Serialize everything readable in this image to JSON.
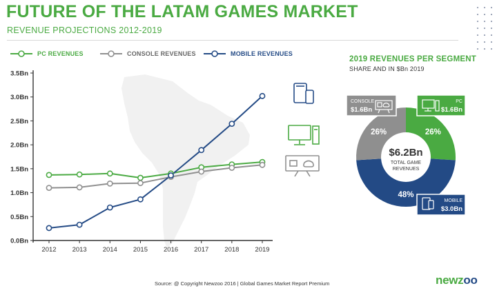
{
  "header": {
    "title": "FUTURE OF THE LATAM GAMES MARKET",
    "subtitle": "REVENUE PROJECTIONS 2012-2019"
  },
  "colors": {
    "pc": "#4aaa42",
    "console": "#8f8f8f",
    "mobile": "#234a85",
    "axis": "#333333",
    "grid": "#cfcfcf",
    "map": "#f1f1f1"
  },
  "icons": [
    "tablet-phone-icon",
    "desktop-pc-icon",
    "console-tv-icon"
  ],
  "chart_data": [
    {
      "type": "line",
      "x": [
        "2012",
        "2013",
        "2014",
        "2015",
        "2016",
        "2017",
        "2018",
        "2019"
      ],
      "series": [
        {
          "name": "PC REVENUES",
          "color": "#4aaa42",
          "values": [
            1.37,
            1.38,
            1.4,
            1.31,
            1.4,
            1.53,
            1.59,
            1.64
          ]
        },
        {
          "name": "CONSOLE REVENUES",
          "color": "#8f8f8f",
          "values": [
            1.1,
            1.11,
            1.19,
            1.2,
            1.33,
            1.44,
            1.52,
            1.58
          ]
        },
        {
          "name": "MOBILE REVENUES",
          "color": "#234a85",
          "values": [
            0.26,
            0.33,
            0.69,
            0.86,
            1.36,
            1.89,
            2.44,
            3.02
          ]
        }
      ],
      "y_ticks": [
        "0.0Bn",
        "0.5Bn",
        "1.0Bn",
        "1.5Bn",
        "2.0Bn",
        "2.5Bn",
        "3.0Bn",
        "3.5Bn"
      ],
      "ylim": [
        0,
        3.5
      ],
      "grid": false,
      "legend": "top-left"
    },
    {
      "type": "pie",
      "title": "2019 REVENUES PER SEGMENT",
      "subtitle": "SHARE AND IN $Bn 2019",
      "center_label": "$6.2Bn",
      "center_sublabel": [
        "TOTAL GAME",
        "REVENUES"
      ],
      "slices": [
        {
          "name": "PC",
          "value": 26,
          "label": "26%",
          "amount": "$1.6Bn",
          "color": "#4aaa42"
        },
        {
          "name": "MOBILE",
          "value": 48,
          "label": "48%",
          "amount": "$3.0Bn",
          "color": "#234a85"
        },
        {
          "name": "CONSOLE",
          "value": 26,
          "label": "26%",
          "amount": "$1.6Bn",
          "color": "#8f8f8f"
        }
      ]
    }
  ],
  "footer": {
    "source": "Source: @ Copyright Newzoo 2016 | Global Games Market Report Premium",
    "logo_prefix": "newz",
    "logo_suffix": "oo"
  }
}
